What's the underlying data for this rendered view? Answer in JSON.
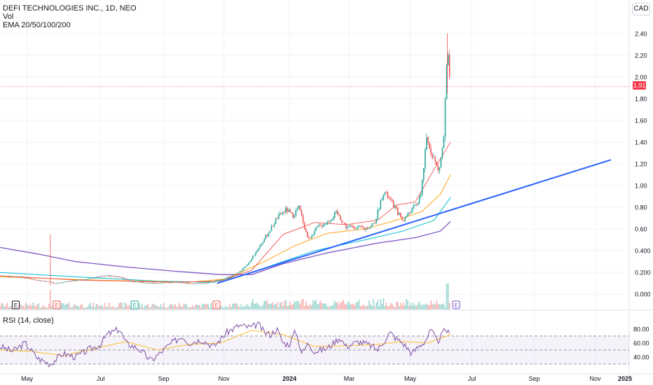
{
  "legend": {
    "title": "DEFI TECHNOLOGIES INC., 1D, NEO",
    "volume": "Vol",
    "ema": "EMA 20/50/100/200",
    "rsi": "RSI (14, close)"
  },
  "currency": "CAD",
  "last_price": "1.91",
  "colors": {
    "up": "#26a69a",
    "down": "#ef5350",
    "trendline": "#2962ff",
    "ema20": "#ef5350",
    "ema50": "#ff9800",
    "ema100": "#00bcd4",
    "ema200": "#7e57c2",
    "rsi": "#7e57c2",
    "rsi_ma": "#fbc02d"
  },
  "chart_data": {
    "type": "candlestick",
    "price_axis": {
      "min": -0.05,
      "max": 2.45,
      "ticks": [
        "2.40",
        "2.20",
        "2.00",
        "1.80",
        "1.60",
        "1.40",
        "1.20",
        "1.00",
        "0.80",
        "0.60",
        "0.400",
        "0.200",
        "0.000"
      ],
      "tick_values": [
        2.4,
        2.2,
        2.0,
        1.8,
        1.6,
        1.4,
        1.2,
        1.0,
        0.8,
        0.6,
        0.4,
        0.2,
        0.0
      ]
    },
    "rsi_axis": {
      "min": 25,
      "max": 90,
      "ticks": [
        "80.00",
        "60.00",
        "40.00"
      ],
      "tick_values": [
        80,
        60,
        40
      ],
      "bands": [
        70,
        50,
        30
      ]
    },
    "time_axis": {
      "labels": [
        "May",
        "Jul",
        "Sep",
        "Nov",
        "2024",
        "Mar",
        "May",
        "Jul",
        "Sep",
        "Nov",
        "2025"
      ],
      "positions": [
        0.043,
        0.16,
        0.26,
        0.356,
        0.46,
        0.555,
        0.652,
        0.75,
        0.849,
        0.946,
        1.046
      ]
    },
    "price_series": [
      [
        0.0,
        0.17
      ],
      [
        0.03,
        0.16
      ],
      [
        0.06,
        0.13
      ],
      [
        0.09,
        0.1
      ],
      [
        0.11,
        0.12
      ],
      [
        0.14,
        0.14
      ],
      [
        0.17,
        0.17
      ],
      [
        0.19,
        0.16
      ],
      [
        0.21,
        0.12
      ],
      [
        0.24,
        0.1
      ],
      [
        0.27,
        0.11
      ],
      [
        0.3,
        0.1
      ],
      [
        0.33,
        0.1
      ],
      [
        0.345,
        0.12
      ],
      [
        0.36,
        0.15
      ],
      [
        0.38,
        0.2
      ],
      [
        0.395,
        0.28
      ],
      [
        0.41,
        0.42
      ],
      [
        0.425,
        0.55
      ],
      [
        0.44,
        0.7
      ],
      [
        0.455,
        0.78
      ],
      [
        0.465,
        0.72
      ],
      [
        0.475,
        0.8
      ],
      [
        0.49,
        0.5
      ],
      [
        0.505,
        0.62
      ],
      [
        0.52,
        0.66
      ],
      [
        0.535,
        0.75
      ],
      [
        0.55,
        0.62
      ],
      [
        0.565,
        0.62
      ],
      [
        0.58,
        0.6
      ],
      [
        0.595,
        0.65
      ],
      [
        0.61,
        0.95
      ],
      [
        0.625,
        0.82
      ],
      [
        0.64,
        0.68
      ],
      [
        0.655,
        0.78
      ],
      [
        0.668,
        0.88
      ],
      [
        0.678,
        1.42
      ],
      [
        0.688,
        1.28
      ],
      [
        0.697,
        1.12
      ],
      [
        0.705,
        1.4
      ],
      [
        0.711,
        2.22
      ],
      [
        0.716,
        1.91
      ]
    ],
    "ema20": [
      [
        0.0,
        0.17
      ],
      [
        0.12,
        0.13
      ],
      [
        0.28,
        0.11
      ],
      [
        0.35,
        0.12
      ],
      [
        0.4,
        0.22
      ],
      [
        0.45,
        0.55
      ],
      [
        0.5,
        0.66
      ],
      [
        0.55,
        0.64
      ],
      [
        0.6,
        0.68
      ],
      [
        0.63,
        0.82
      ],
      [
        0.66,
        0.85
      ],
      [
        0.69,
        1.15
      ],
      [
        0.716,
        1.4
      ]
    ],
    "ema50": [
      [
        0.0,
        0.16
      ],
      [
        0.15,
        0.13
      ],
      [
        0.3,
        0.11
      ],
      [
        0.36,
        0.14
      ],
      [
        0.42,
        0.3
      ],
      [
        0.47,
        0.45
      ],
      [
        0.52,
        0.56
      ],
      [
        0.58,
        0.6
      ],
      [
        0.63,
        0.68
      ],
      [
        0.67,
        0.76
      ],
      [
        0.7,
        0.92
      ],
      [
        0.716,
        1.1
      ]
    ],
    "ema100": [
      [
        0.0,
        0.2
      ],
      [
        0.12,
        0.16
      ],
      [
        0.25,
        0.12
      ],
      [
        0.33,
        0.11
      ],
      [
        0.38,
        0.16
      ],
      [
        0.43,
        0.26
      ],
      [
        0.5,
        0.4
      ],
      [
        0.58,
        0.5
      ],
      [
        0.64,
        0.58
      ],
      [
        0.69,
        0.68
      ],
      [
        0.716,
        0.89
      ]
    ],
    "ema200": [
      [
        0.0,
        0.43
      ],
      [
        0.06,
        0.37
      ],
      [
        0.12,
        0.3
      ],
      [
        0.2,
        0.25
      ],
      [
        0.28,
        0.21
      ],
      [
        0.35,
        0.18
      ],
      [
        0.4,
        0.18
      ],
      [
        0.45,
        0.28
      ],
      [
        0.52,
        0.38
      ],
      [
        0.6,
        0.47
      ],
      [
        0.66,
        0.52
      ],
      [
        0.7,
        0.58
      ],
      [
        0.716,
        0.67
      ]
    ],
    "trendline": [
      [
        0.345,
        0.1
      ],
      [
        1.05,
        1.38
      ]
    ],
    "last_price_line": 1.91,
    "rsi": [
      [
        0.0,
        55
      ],
      [
        0.02,
        48
      ],
      [
        0.04,
        60
      ],
      [
        0.06,
        38
      ],
      [
        0.08,
        30
      ],
      [
        0.1,
        45
      ],
      [
        0.12,
        40
      ],
      [
        0.14,
        50
      ],
      [
        0.16,
        58
      ],
      [
        0.17,
        72
      ],
      [
        0.19,
        80
      ],
      [
        0.2,
        60
      ],
      [
        0.22,
        52
      ],
      [
        0.24,
        35
      ],
      [
        0.25,
        42
      ],
      [
        0.27,
        58
      ],
      [
        0.29,
        70
      ],
      [
        0.3,
        60
      ],
      [
        0.32,
        65
      ],
      [
        0.34,
        55
      ],
      [
        0.36,
        75
      ],
      [
        0.38,
        85
      ],
      [
        0.4,
        82
      ],
      [
        0.41,
        88
      ],
      [
        0.42,
        75
      ],
      [
        0.43,
        72
      ],
      [
        0.44,
        80
      ],
      [
        0.45,
        60
      ],
      [
        0.46,
        58
      ],
      [
        0.47,
        78
      ],
      [
        0.48,
        45
      ],
      [
        0.49,
        60
      ],
      [
        0.5,
        48
      ],
      [
        0.52,
        52
      ],
      [
        0.54,
        68
      ],
      [
        0.55,
        55
      ],
      [
        0.57,
        62
      ],
      [
        0.59,
        56
      ],
      [
        0.6,
        50
      ],
      [
        0.62,
        75
      ],
      [
        0.63,
        66
      ],
      [
        0.64,
        60
      ],
      [
        0.655,
        45
      ],
      [
        0.665,
        55
      ],
      [
        0.675,
        62
      ],
      [
        0.685,
        78
      ],
      [
        0.695,
        62
      ],
      [
        0.7,
        68
      ],
      [
        0.708,
        80
      ],
      [
        0.716,
        70
      ]
    ],
    "rsi_ma": [
      [
        0.0,
        50
      ],
      [
        0.05,
        48
      ],
      [
        0.1,
        42
      ],
      [
        0.15,
        52
      ],
      [
        0.2,
        62
      ],
      [
        0.25,
        50
      ],
      [
        0.3,
        58
      ],
      [
        0.35,
        60
      ],
      [
        0.4,
        78
      ],
      [
        0.45,
        72
      ],
      [
        0.5,
        55
      ],
      [
        0.55,
        56
      ],
      [
        0.6,
        58
      ],
      [
        0.64,
        62
      ],
      [
        0.68,
        60
      ],
      [
        0.716,
        72
      ]
    ],
    "volume_spikes": [
      [
        0.08,
        0.14
      ],
      [
        0.61,
        0.08
      ],
      [
        0.711,
        0.16
      ],
      [
        0.716,
        0.12
      ]
    ],
    "event_markers": [
      {
        "x": 0.025,
        "label": "E",
        "color": "#131722"
      },
      {
        "x": 0.09,
        "label": "E",
        "color": "#ef5350"
      },
      {
        "x": 0.214,
        "label": "E",
        "color": "#26a69a"
      },
      {
        "x": 0.344,
        "label": "E",
        "color": "#ef5350"
      },
      {
        "x": 0.725,
        "label": "E",
        "color": "#7e57c2"
      }
    ]
  }
}
